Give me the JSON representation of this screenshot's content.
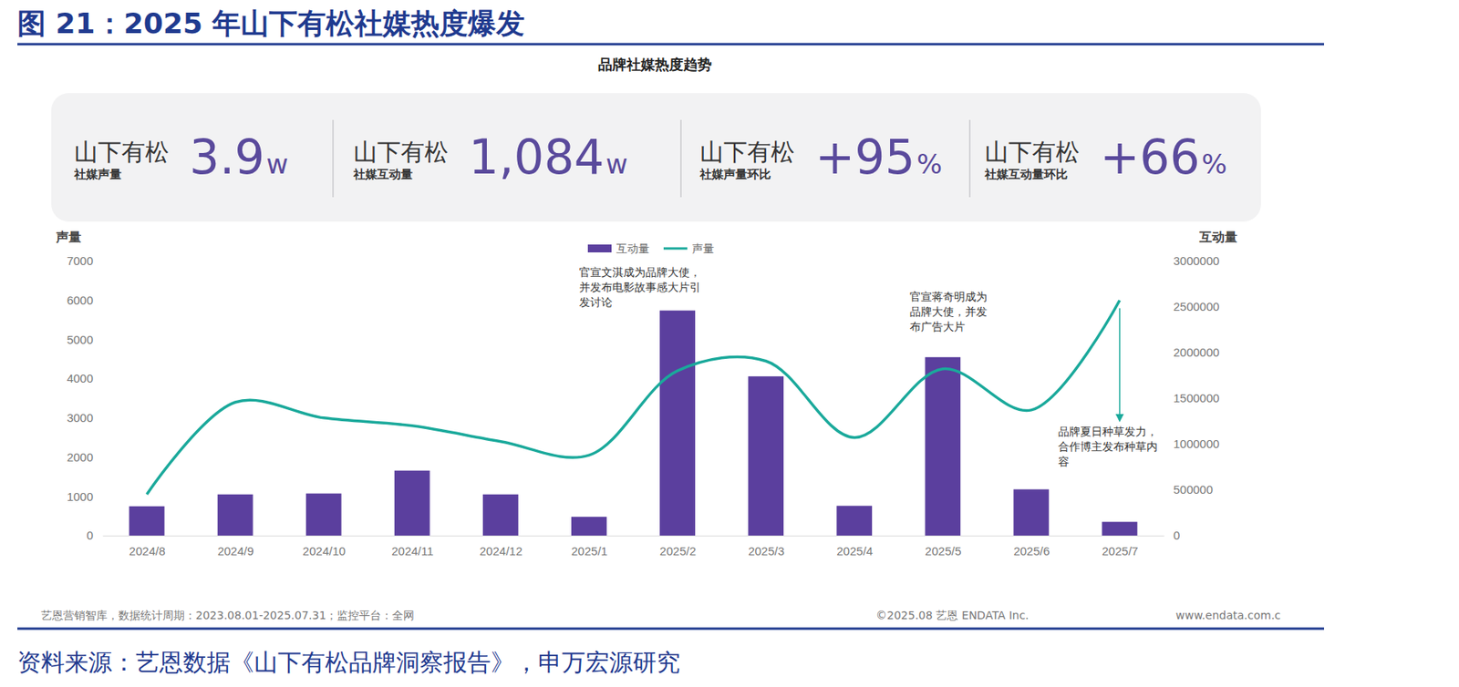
{
  "header": {
    "figure_title": "图 21：2025 年山下有松社媒热度爆发",
    "chart_title": "品牌社媒热度趋势"
  },
  "kpis": [
    {
      "brand": "山下有松",
      "label": "社媒声量",
      "value": "3.9",
      "unit": "w"
    },
    {
      "brand": "山下有松",
      "label": "社媒互动量",
      "value": "1,084",
      "unit": "w"
    },
    {
      "brand": "山下有松",
      "label": "社媒声量环比",
      "value": "+95",
      "unit": "%"
    },
    {
      "brand": "山下有松",
      "label": "社媒互动量环比",
      "value": "+66",
      "unit": "%"
    }
  ],
  "chart_data": {
    "type": "bar",
    "categories": [
      "2024/8",
      "2024/9",
      "2024/10",
      "2024/11",
      "2024/12",
      "2025/1",
      "2025/2",
      "2025/3",
      "2025/4",
      "2025/5",
      "2025/6",
      "2025/7"
    ],
    "series": [
      {
        "name": "互动量",
        "type": "bar",
        "color": "#5b3f9e",
        "axis": "y2",
        "values": [
          320000,
          450000,
          460000,
          710000,
          450000,
          205000,
          2460000,
          1740000,
          325000,
          1950000,
          505000,
          150000
        ]
      },
      {
        "name": "声量",
        "type": "line",
        "color": "#1aa99b",
        "values": [
          1050,
          3400,
          3000,
          2800,
          2400,
          2050,
          4200,
          4450,
          2500,
          4250,
          3200,
          6000
        ]
      }
    ],
    "ylabel": "声量",
    "y2label": "互动量",
    "ylim": [
      0,
      7000
    ],
    "yticks": [
      0,
      1000,
      2000,
      3000,
      4000,
      5000,
      6000,
      7000
    ],
    "y2lim": [
      0,
      3000000
    ],
    "y2ticks": [
      0,
      500000,
      1000000,
      1500000,
      2000000,
      2500000,
      3000000
    ],
    "grid": false,
    "legend": "top",
    "annotations": [
      "官宣文淇成为品牌大使，并发布电影故事感大片引发讨论",
      "官宣蒋奇明成为品牌大使，并发布广告大片",
      "品牌夏日种草发力，合作博主发布种草内容"
    ]
  },
  "footer": {
    "note": "艺恩营销智库，数据统计周期：2023.08.01-2025.07.31；监控平台：全网",
    "copyright": "©2025.08 艺恩 ENDATA Inc.",
    "url": "www.endata.com.c"
  },
  "source": "资料来源：艺恩数据《山下有松品牌洞察报告》，申万宏源研究"
}
